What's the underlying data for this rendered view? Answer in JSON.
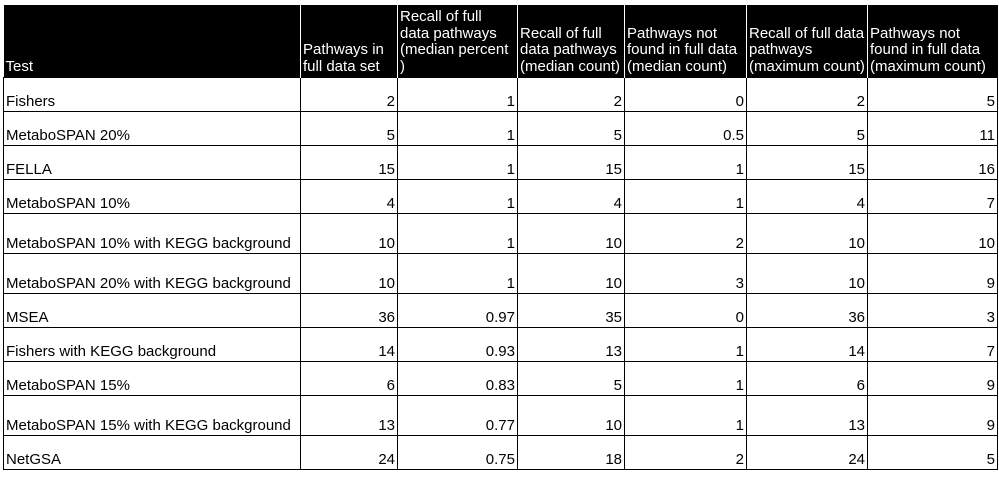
{
  "table": {
    "headers": [
      "Test",
      "Pathways in full data set",
      "Recall of full data pathways (median percent )",
      "Recall of full data pathways (median count)",
      "Pathways not found in full data (median count)",
      "Recall of full data pathways (maximum count)",
      "Pathways not found in full data (maximum count)"
    ],
    "rows": [
      {
        "test": "Fishers",
        "c1": "2",
        "c2": "1",
        "c3": "2",
        "c4": "0",
        "c5": "2",
        "c6": "5"
      },
      {
        "test": "MetaboSPAN 20%",
        "c1": "5",
        "c2": "1",
        "c3": "5",
        "c4": "0.5",
        "c5": "5",
        "c6": "11"
      },
      {
        "test": "FELLA",
        "c1": "15",
        "c2": "1",
        "c3": "15",
        "c4": "1",
        "c5": "15",
        "c6": "16"
      },
      {
        "test": "MetaboSPAN 10%",
        "c1": "4",
        "c2": "1",
        "c3": "4",
        "c4": "1",
        "c5": "4",
        "c6": "7"
      },
      {
        "test": "MetaboSPAN 10% with KEGG background",
        "c1": "10",
        "c2": "1",
        "c3": "10",
        "c4": "2",
        "c5": "10",
        "c6": "10"
      },
      {
        "test": "MetaboSPAN 20% with KEGG background",
        "c1": "10",
        "c2": "1",
        "c3": "10",
        "c4": "3",
        "c5": "10",
        "c6": "9"
      },
      {
        "test": "MSEA",
        "c1": "36",
        "c2": "0.97",
        "c3": "35",
        "c4": "0",
        "c5": "36",
        "c6": "3"
      },
      {
        "test": "Fishers with KEGG background",
        "c1": "14",
        "c2": "0.93",
        "c3": "13",
        "c4": "1",
        "c5": "14",
        "c6": "7"
      },
      {
        "test": "MetaboSPAN 15%",
        "c1": "6",
        "c2": "0.83",
        "c3": "5",
        "c4": "1",
        "c5": "6",
        "c6": "9"
      },
      {
        "test": "MetaboSPAN 15% with KEGG background",
        "c1": "13",
        "c2": "0.77",
        "c3": "10",
        "c4": "1",
        "c5": "13",
        "c6": "9"
      },
      {
        "test": "NetGSA",
        "c1": "24",
        "c2": "0.75",
        "c3": "18",
        "c4": "2",
        "c5": "24",
        "c6": "5"
      }
    ]
  }
}
